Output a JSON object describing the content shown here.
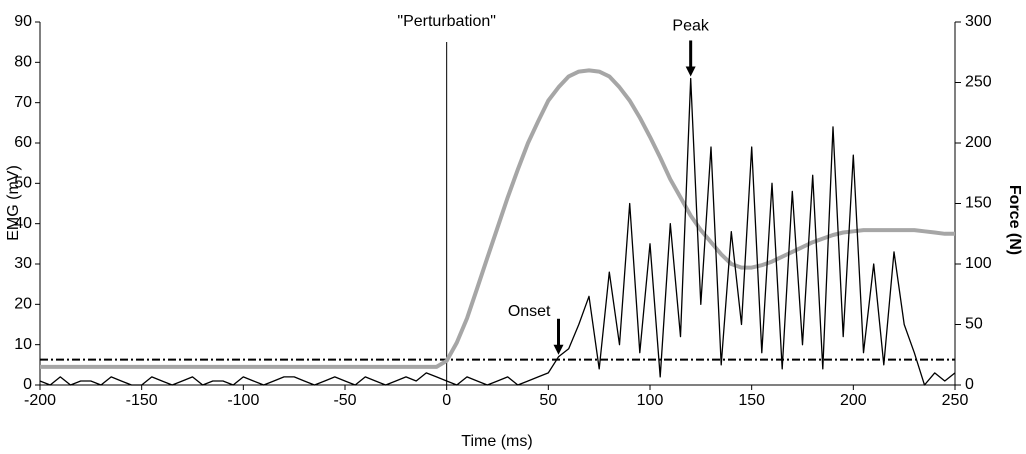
{
  "chart_data": {
    "type": "line",
    "x_label": "Time (ms)",
    "y_label": "EMG (mV)",
    "y2_label": "Force (N)",
    "xlim": [
      -200,
      250
    ],
    "xticks": [
      -200,
      -150,
      -100,
      -50,
      0,
      50,
      100,
      150,
      200,
      250
    ],
    "ylim": [
      0,
      90
    ],
    "yticks": [
      0,
      10,
      20,
      30,
      40,
      50,
      60,
      70,
      80,
      90
    ],
    "y2lim": [
      0,
      300
    ],
    "y2ticks": [
      0,
      50,
      100,
      150,
      200,
      250,
      300
    ],
    "x": [
      -200,
      -195,
      -190,
      -185,
      -180,
      -175,
      -170,
      -165,
      -160,
      -155,
      -150,
      -145,
      -140,
      -135,
      -130,
      -125,
      -120,
      -115,
      -110,
      -105,
      -100,
      -95,
      -90,
      -85,
      -80,
      -75,
      -70,
      -65,
      -60,
      -55,
      -50,
      -45,
      -40,
      -35,
      -30,
      -25,
      -20,
      -15,
      -10,
      -5,
      0,
      5,
      10,
      15,
      20,
      25,
      30,
      35,
      40,
      45,
      50,
      55,
      60,
      65,
      70,
      75,
      80,
      85,
      90,
      95,
      100,
      105,
      110,
      115,
      120,
      125,
      130,
      135,
      140,
      145,
      150,
      155,
      160,
      165,
      170,
      175,
      180,
      185,
      190,
      195,
      200,
      205,
      210,
      215,
      220,
      225,
      230,
      235,
      240,
      245,
      250
    ],
    "series": [
      {
        "name": "EMG",
        "color": "#000000",
        "values": [
          1,
          0,
          2,
          0,
          1,
          1,
          0,
          2,
          1,
          0,
          0,
          2,
          1,
          0,
          1,
          2,
          0,
          1,
          1,
          0,
          2,
          1,
          0,
          1,
          2,
          2,
          1,
          0,
          1,
          2,
          1,
          0,
          2,
          1,
          0,
          1,
          2,
          1,
          3,
          2,
          1,
          0,
          2,
          1,
          0,
          1,
          2,
          0,
          1,
          2,
          3,
          7,
          9,
          15,
          22,
          4,
          28,
          10,
          45,
          8,
          35,
          2,
          40,
          12,
          76,
          20,
          59,
          5,
          38,
          15,
          59,
          8,
          50,
          4,
          48,
          10,
          52,
          4,
          64,
          12,
          57,
          8,
          30,
          5,
          33,
          15,
          8,
          0,
          3,
          1,
          3
        ]
      },
      {
        "name": "Force",
        "color": "#a6a6a6",
        "axis": "y2",
        "values": [
          15,
          15,
          15,
          15,
          15,
          15,
          15,
          15,
          15,
          15,
          15,
          15,
          15,
          15,
          15,
          15,
          15,
          15,
          15,
          15,
          15,
          15,
          15,
          15,
          15,
          15,
          15,
          15,
          15,
          15,
          15,
          15,
          15,
          15,
          15,
          15,
          15,
          15,
          15,
          15,
          20,
          35,
          55,
          80,
          105,
          130,
          155,
          178,
          200,
          218,
          235,
          246,
          255,
          259,
          260,
          259,
          255,
          246,
          235,
          221,
          205,
          188,
          170,
          155,
          140,
          128,
          118,
          108,
          100,
          97,
          97,
          99,
          102,
          106,
          110,
          114,
          118,
          121,
          124,
          126,
          127,
          128,
          128,
          128,
          128,
          128,
          128,
          127,
          126,
          125,
          125
        ]
      }
    ],
    "threshold": 6.3,
    "vline": {
      "x": 0,
      "label": "\"Perturbation\""
    },
    "annotations": [
      {
        "text": "Peak",
        "x": 120,
        "y": 76
      },
      {
        "text": "Onset",
        "x": 55,
        "y": 7
      }
    ]
  }
}
